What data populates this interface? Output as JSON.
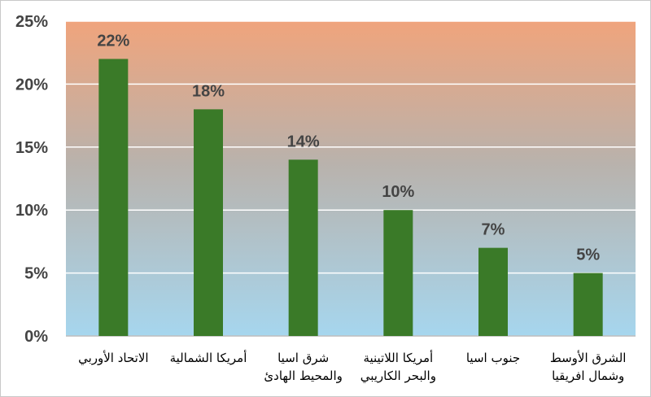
{
  "chart_data": {
    "type": "bar",
    "categories": [
      [
        "الاتحاد الأوربي"
      ],
      [
        "أمريكا الشمالية"
      ],
      [
        "شرق اسيا",
        "والمحيط الهادئ"
      ],
      [
        "أمريكا اللاتينية",
        "والبحر الكاريبي"
      ],
      [
        "جنوب اسيا"
      ],
      [
        "الشرق الأوسط",
        "وشمال افريقيا"
      ]
    ],
    "values": [
      22,
      18,
      14,
      10,
      7,
      5
    ],
    "data_labels": [
      "22%",
      "18%",
      "14%",
      "10%",
      "7%",
      "5%"
    ],
    "yticks": [
      0,
      5,
      10,
      15,
      20,
      25
    ],
    "ytick_labels": [
      "0%",
      "5%",
      "10%",
      "15%",
      "20%",
      "25%"
    ],
    "ylim": [
      0,
      25
    ],
    "title": "",
    "xlabel": "",
    "ylabel": "",
    "grid": true,
    "legend": "none",
    "colors": {
      "bar": "#3a7a28",
      "background_top": "#f0a47c",
      "background_bottom": "#a6d6ee",
      "grid": "#ffffff",
      "axis": "#bdbdbd"
    }
  }
}
